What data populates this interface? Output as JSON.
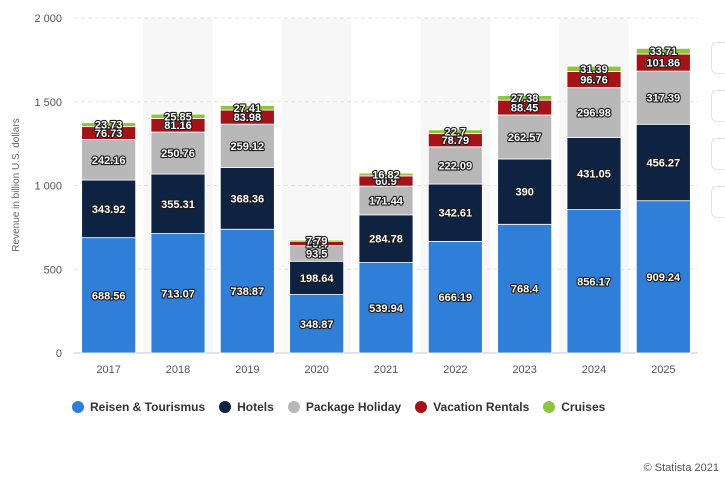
{
  "chart_data": {
    "type": "bar",
    "stacked": true,
    "ylabel": "Revenue in billion U.S. dollars",
    "ylim": [
      0,
      2000
    ],
    "ytick_step": 500,
    "ytick_labels": [
      "0",
      "500",
      "1 000",
      "1 500",
      "2 000"
    ],
    "grid": true,
    "legend_position": "bottom",
    "categories": [
      "2017",
      "2018",
      "2019",
      "2020",
      "2021",
      "2022",
      "2023",
      "2024",
      "2025"
    ],
    "series": [
      {
        "name": "Reisen & Tourismus",
        "color": "#2f7ed8",
        "values": [
          688.56,
          713.07,
          738.87,
          348.87,
          539.94,
          666.19,
          768.4,
          856.17,
          909.24
        ],
        "labels": [
          "688.56",
          "713.07",
          "738.87",
          "348.87",
          "539.94",
          "666.19",
          "768.4",
          "856.17",
          "909.24"
        ]
      },
      {
        "name": "Hotels",
        "color": "#0d2341",
        "values": [
          343.92,
          355.31,
          368.36,
          198.64,
          284.78,
          342.61,
          390,
          431.05,
          456.27
        ],
        "labels": [
          "343.92",
          "355.31",
          "368.36",
          "198.64",
          "284.78",
          "342.61",
          "390",
          "431.05",
          "456.27"
        ]
      },
      {
        "name": "Package Holiday",
        "color": "#b8b8b8",
        "values": [
          242.16,
          250.76,
          259.12,
          93.5,
          171.44,
          222.09,
          262.57,
          296.98,
          317.39
        ],
        "labels": [
          "242.16",
          "250.76",
          "259.12",
          "93.5",
          "171.44",
          "222.09",
          "262.57",
          "296.98",
          "317.39"
        ]
      },
      {
        "name": "Vacation Rentals",
        "color": "#a51218",
        "values": [
          76.73,
          81.16,
          83.98,
          26.4,
          60.9,
          78.79,
          88.45,
          96.76,
          101.86
        ],
        "labels": [
          "76.73",
          "81.16",
          "83.98",
          "26.4",
          "60.9",
          "78.79",
          "88.45",
          "96.76",
          "101.86"
        ]
      },
      {
        "name": "Cruises",
        "color": "#8cc63e",
        "values": [
          23.73,
          25.85,
          27.41,
          7.79,
          16.82,
          22.7,
          27.38,
          31.39,
          33.71
        ],
        "labels": [
          "23.73",
          "25.85",
          "27.41",
          "7.79",
          "16.82",
          "22.7",
          "27.38",
          "31.39",
          "33.71"
        ]
      }
    ]
  },
  "credit": "© Statista 2021"
}
